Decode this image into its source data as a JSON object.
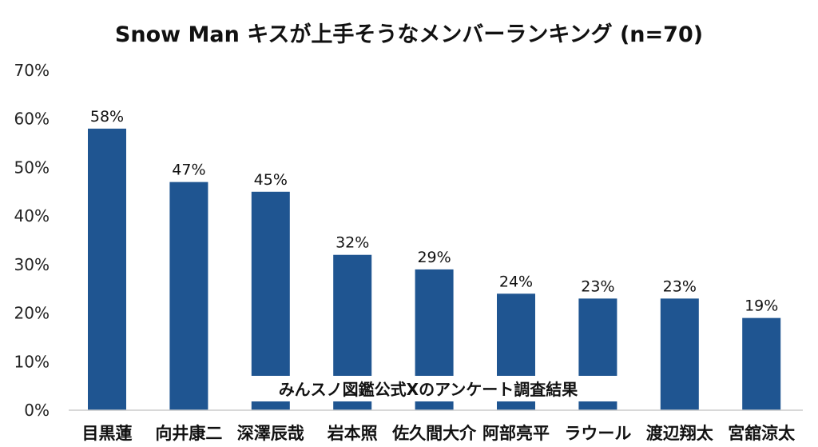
{
  "chart_data": {
    "type": "bar",
    "title": "Snow Man キスが上手そうなメンバーランキング (n=70)",
    "categories": [
      "目黒蓮",
      "向井康二",
      "深澤辰哉",
      "岩本照",
      "佐久間大介",
      "阿部亮平",
      "ラウール",
      "渡辺翔太",
      "宮舘涼太"
    ],
    "values": [
      58,
      47,
      45,
      32,
      29,
      24,
      23,
      23,
      19
    ],
    "data_labels": [
      "58%",
      "47%",
      "45%",
      "32%",
      "29%",
      "24%",
      "23%",
      "23%",
      "19%"
    ],
    "yticks": [
      "0%",
      "10%",
      "20%",
      "30%",
      "40%",
      "50%",
      "60%",
      "70%"
    ],
    "ylim": [
      0,
      70
    ],
    "xlabel": "",
    "ylabel": "",
    "grid": false,
    "annotation": "みんスノ図鑑公式Xのアンケート調査結果",
    "bar_color": "#1f5591"
  }
}
